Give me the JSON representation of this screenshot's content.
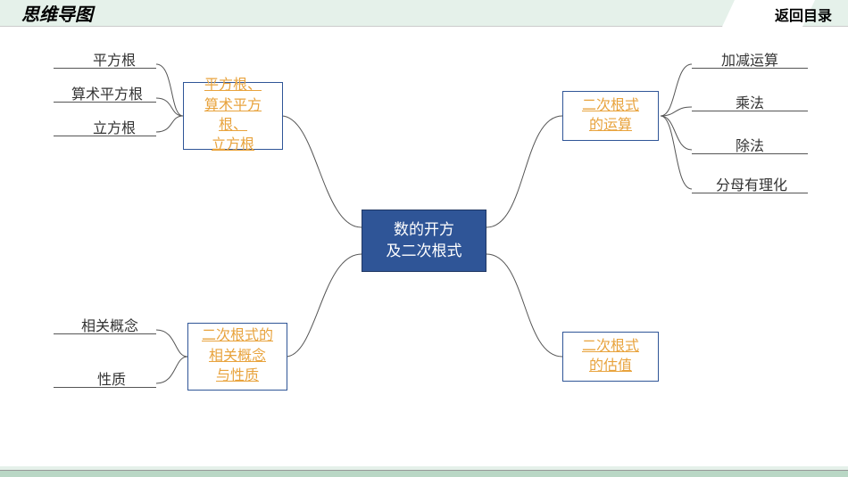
{
  "header": {
    "title": "思维导图",
    "right": "返回目录"
  },
  "center": {
    "text": "数的开方\n及二次根式"
  },
  "branches": {
    "tl": {
      "text": "平方根、\n算术平方根、\n立方根"
    },
    "bl": {
      "text": "二次根式的\n相关概念\n与性质"
    },
    "tr": {
      "text": "二次根式\n的运算"
    },
    "br": {
      "text": "二次根式\n的估值"
    }
  },
  "leaves": {
    "tl": [
      "平方根",
      "算术平方根",
      "立方根"
    ],
    "bl": [
      "相关概念",
      "性质"
    ],
    "tr": [
      "加减运算",
      "乘法",
      "除法",
      "分母有理化"
    ]
  },
  "colors": {
    "center_bg": "#2f5597",
    "center_border": "#203864",
    "branch_border": "#2f5597",
    "branch_text": "#e8a33d",
    "header_bg": "#e5f1ea",
    "line": "#555555"
  }
}
